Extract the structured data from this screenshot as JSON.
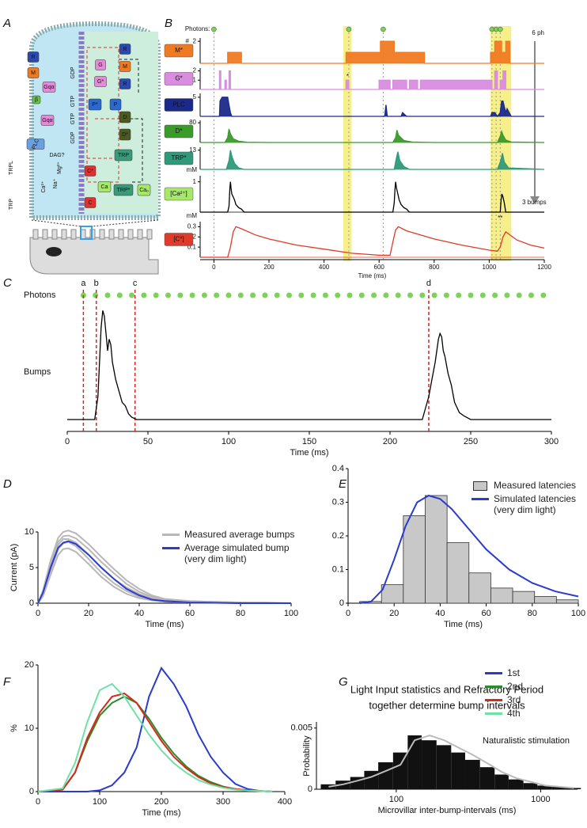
{
  "diagram": {
    "panel": "A",
    "nodes": [
      "R",
      "M",
      "Gqα",
      "β",
      "Gqα",
      "PLC",
      "DAG?",
      "Mg²⁺",
      "Na⁺",
      "Ca²⁺",
      "TRPL",
      "TRP",
      "GDP",
      "GTP",
      "GTP",
      "GDP",
      "G",
      "G*",
      "R",
      "M",
      "R",
      "P*",
      "P",
      "D",
      "D*",
      "TRP",
      "TRP*",
      "C*",
      "C",
      "Ca",
      "Caₒ"
    ]
  },
  "chart_data": [
    {
      "type": "events",
      "panel": "B",
      "label": "Photons:",
      "annotation": "6 ph",
      "color": "#7dd35a",
      "x": [
        0,
        490,
        615,
        1010,
        1025,
        1040
      ],
      "xlim": [
        -50,
        1200
      ],
      "highlights": [
        [
          470,
          500
        ],
        [
          1005,
          1080
        ]
      ],
      "highlight_color": "#f7f08a"
    },
    {
      "type": "line",
      "label": "M*",
      "ylabel": "#",
      "color": "#f07a22",
      "fill": true,
      "xlim": [
        -50,
        1200
      ],
      "ylim": [
        0,
        2.3
      ],
      "yticks": [
        2
      ],
      "x": [
        -50,
        50,
        50,
        100,
        100,
        480,
        480,
        605,
        605,
        655,
        655,
        765,
        765,
        1005,
        1005,
        1020,
        1020,
        1045,
        1045,
        1060,
        1060,
        1075,
        1075,
        1200
      ],
      "values": [
        0,
        0,
        1,
        1,
        0,
        0,
        1,
        1,
        2,
        2,
        1,
        1,
        0,
        0,
        1,
        1,
        2,
        2,
        1,
        1,
        2,
        2,
        0,
        0
      ]
    },
    {
      "type": "line",
      "label": "G*",
      "annotation": "*",
      "color": "#d98ce0",
      "fill": true,
      "xlim": [
        -50,
        1200
      ],
      "ylim": [
        0,
        2.3
      ],
      "yticks": [
        1,
        2
      ],
      "x": [
        -50,
        20,
        20,
        25,
        25,
        40,
        40,
        45,
        45,
        55,
        55,
        60,
        60,
        480,
        480,
        490,
        490,
        600,
        600,
        640,
        640,
        650,
        650,
        700,
        700,
        710,
        710,
        740,
        740,
        750,
        750,
        1010,
        1010,
        1020,
        1020,
        1030,
        1030,
        1040,
        1040,
        1050,
        1050,
        1060,
        1060,
        1200
      ],
      "values": [
        0,
        0,
        2,
        2,
        0,
        0,
        1,
        1,
        0,
        0,
        2,
        2,
        0,
        0,
        1,
        1,
        0,
        0,
        1,
        1,
        0,
        0,
        1,
        1,
        0,
        0,
        1,
        1,
        0,
        0,
        1,
        1,
        0,
        0,
        2,
        2,
        0,
        0,
        1,
        1,
        2,
        2,
        0,
        0
      ]
    },
    {
      "type": "line",
      "label": "PLC",
      "color": "#1b2a8a",
      "fill": true,
      "xlim": [
        -50,
        1200
      ],
      "ylim": [
        0,
        6
      ],
      "yticks": [
        5
      ],
      "x": [
        -50,
        20,
        22,
        30,
        50,
        55,
        60,
        65,
        120,
        480,
        620,
        625,
        630,
        680,
        685,
        700,
        705,
        1005,
        1010,
        1020,
        1030,
        1040,
        1045,
        1050,
        1060,
        1065,
        1080,
        1200
      ],
      "values": [
        0,
        0,
        4,
        5,
        5,
        3,
        1,
        0,
        0,
        0,
        0,
        3,
        0,
        0,
        1,
        0,
        0,
        0,
        1,
        1,
        0,
        1,
        4,
        4,
        1,
        2,
        0,
        0
      ]
    },
    {
      "type": "line",
      "label": "D*",
      "color": "#3a9a2a",
      "fill": true,
      "xlim": [
        -50,
        1200
      ],
      "ylim": [
        0,
        90
      ],
      "yticks": [
        80
      ],
      "x": [
        -50,
        40,
        50,
        55,
        60,
        70,
        90,
        120,
        200,
        600,
        650,
        660,
        665,
        670,
        690,
        720,
        800,
        1030,
        1040,
        1045,
        1050,
        1060,
        1080,
        1200
      ],
      "values": [
        0,
        0,
        20,
        55,
        35,
        15,
        5,
        1,
        0,
        0,
        0,
        20,
        50,
        30,
        8,
        2,
        0,
        0,
        25,
        45,
        30,
        10,
        2,
        0
      ]
    },
    {
      "type": "line",
      "label": "TRP*",
      "color": "#2f9a7a",
      "fill": true,
      "xlim": [
        -50,
        1200
      ],
      "ylim": [
        0,
        15
      ],
      "yticks": [
        13
      ],
      "x": [
        -50,
        45,
        55,
        60,
        65,
        75,
        90,
        110,
        600,
        655,
        662,
        668,
        675,
        690,
        710,
        1030,
        1042,
        1048,
        1055,
        1070,
        1200
      ],
      "values": [
        0,
        0,
        6,
        13,
        9,
        4,
        1,
        0,
        0,
        0,
        7,
        12,
        6,
        2,
        0,
        0,
        6,
        11,
        5,
        1,
        0
      ]
    },
    {
      "type": "line",
      "label": "[Ca²⁺]",
      "ylabel": "mM",
      "annotations": [
        "**",
        "3 bumps"
      ],
      "color": "#000000",
      "fill": false,
      "xlim": [
        -50,
        1200
      ],
      "ylim": [
        0,
        1.2
      ],
      "yticks": [
        1
      ],
      "x": [
        -50,
        50,
        55,
        58,
        60,
        62,
        65,
        70,
        75,
        80,
        90,
        100,
        110,
        600,
        650,
        655,
        658,
        660,
        663,
        668,
        673,
        680,
        690,
        700,
        710,
        1030,
        1040,
        1043,
        1046,
        1050,
        1055,
        1060,
        1200
      ],
      "values": [
        0,
        0,
        0.2,
        0.8,
        1,
        0.8,
        0.6,
        0.5,
        0.4,
        0.25,
        0.15,
        0.1,
        0,
        0,
        0,
        0.3,
        0.8,
        1,
        0.8,
        0.6,
        0.4,
        0.25,
        0.15,
        0.1,
        0,
        0,
        0,
        0.4,
        0.6,
        0.5,
        0.3,
        0,
        0
      ]
    },
    {
      "type": "line",
      "label": "[C*]",
      "ylabel": "mM",
      "xlabel": "Time (ms)",
      "color": "#e03a2a",
      "fill": false,
      "xlim": [
        -50,
        1200
      ],
      "ylim": [
        0,
        0.35
      ],
      "yticks": [
        0.1,
        0.2,
        0.3
      ],
      "xticks": [
        0,
        200,
        400,
        600,
        800,
        1000,
        1200
      ],
      "x": [
        -50,
        50,
        60,
        70,
        80,
        100,
        150,
        200,
        300,
        400,
        500,
        600,
        640,
        650,
        660,
        670,
        700,
        800,
        900,
        1000,
        1030,
        1040,
        1050,
        1060,
        1100,
        1150,
        1200
      ],
      "values": [
        0,
        0,
        0.1,
        0.25,
        0.3,
        0.28,
        0.22,
        0.18,
        0.12,
        0.08,
        0.04,
        0.02,
        0.02,
        0.15,
        0.27,
        0.3,
        0.26,
        0.18,
        0.12,
        0.07,
        0.06,
        0.1,
        0.2,
        0.25,
        0.17,
        0.12,
        0.09
      ]
    },
    {
      "type": "line",
      "panel": "C",
      "label": "Bumps",
      "xlabel": "Time (ms)",
      "color": "#000000",
      "fill": false,
      "xlim": [
        0,
        300
      ],
      "ylim": [
        0,
        1
      ],
      "xticks": [
        0,
        50,
        100,
        150,
        200,
        250,
        300
      ],
      "photons": {
        "label": "Photons",
        "color": "#7dd35a",
        "x": [
          10,
          17.5,
          25,
          32.5,
          40,
          47.5,
          55,
          62.5,
          70,
          77.5,
          85,
          92.5,
          100,
          107.5,
          115,
          122.5,
          130,
          137.5,
          145,
          152.5,
          160,
          167.5,
          175,
          182.5,
          190,
          197.5,
          205,
          212.5,
          220,
          227.5,
          235,
          242.5,
          250,
          257.5,
          265,
          272.5,
          280,
          287.5,
          295
        ]
      },
      "markers": [
        {
          "value": 10,
          "label": "a"
        },
        {
          "value": 18,
          "label": "b"
        },
        {
          "value": 42,
          "label": "c"
        },
        {
          "value": 224,
          "label": "d"
        }
      ],
      "marker_color": "#e02020",
      "x": [
        0,
        17,
        19,
        20,
        21,
        22,
        23,
        24,
        25,
        26,
        27,
        28,
        30,
        32,
        34,
        36,
        38,
        40,
        43,
        220,
        222,
        224,
        226,
        228,
        230,
        231,
        232,
        233,
        234,
        236,
        238,
        240,
        243,
        246,
        250,
        300
      ],
      "values": [
        0,
        0,
        0.2,
        0.5,
        0.8,
        0.95,
        0.9,
        0.75,
        0.6,
        0.7,
        0.65,
        0.5,
        0.35,
        0.25,
        0.15,
        0.12,
        0.05,
        0.02,
        0,
        0,
        0.1,
        0.2,
        0.35,
        0.5,
        0.7,
        0.75,
        0.72,
        0.6,
        0.55,
        0.4,
        0.3,
        0.15,
        0.06,
        0.03,
        0,
        0
      ]
    },
    {
      "type": "line",
      "panel": "D",
      "xlabel": "Time (ms)",
      "ylabel": "Current (pA)",
      "xlim": [
        0,
        100
      ],
      "ylim": [
        0,
        10
      ],
      "xticks": [
        0,
        20,
        40,
        60,
        80,
        100
      ],
      "yticks": [
        0,
        5,
        10
      ],
      "x": [
        0,
        2,
        5,
        8,
        10,
        12,
        15,
        20,
        25,
        30,
        35,
        40,
        45,
        50,
        60,
        70,
        80,
        90,
        100
      ],
      "series": [
        {
          "name": "Measured average bumps",
          "color": "#b8b8b8",
          "values": [
            0,
            1.8,
            6,
            9.2,
            10,
            10.2,
            9.8,
            8.3,
            6.5,
            4.8,
            3.2,
            2,
            1.1,
            0.6,
            0.3,
            0.2,
            0.1,
            0.1,
            0
          ]
        },
        {
          "color": "#b8b8b8",
          "values": [
            0,
            1.6,
            5.5,
            8.6,
            9.4,
            9.5,
            9.1,
            7.6,
            5.8,
            4.2,
            2.7,
            1.6,
            0.9,
            0.5,
            0.2,
            0.2,
            0.1,
            0,
            0
          ]
        },
        {
          "color": "#b8b8b8",
          "values": [
            0,
            1.4,
            5,
            8.2,
            9,
            9,
            8.5,
            6.8,
            5,
            3.4,
            2.2,
            1.3,
            0.7,
            0.4,
            0.2,
            0.1,
            0.1,
            0,
            0
          ]
        },
        {
          "color": "#b8b8b8",
          "values": [
            0,
            1.2,
            4.6,
            7.6,
            8.4,
            8.6,
            8,
            6.2,
            4.3,
            2.8,
            1.7,
            0.9,
            0.5,
            0.3,
            0.1,
            0.1,
            0,
            0,
            0
          ]
        },
        {
          "color": "#b8b8b8",
          "values": [
            0,
            1,
            4,
            6.8,
            7.6,
            7.7,
            7.2,
            5.5,
            3.7,
            2.3,
            1.3,
            0.7,
            0.4,
            0.2,
            0.1,
            0.1,
            0,
            0,
            0
          ]
        },
        {
          "name": "Average simulated bump (very dim light)",
          "color": "#2a3bd0",
          "values": [
            0,
            1.5,
            5,
            7.8,
            8.5,
            8.7,
            8.3,
            6.8,
            5,
            3.4,
            2,
            1.1,
            0.5,
            0.3,
            0.1,
            0.05,
            0,
            0,
            0
          ]
        }
      ]
    },
    {
      "type": "histogram",
      "panel": "E",
      "name": "Measured latencies",
      "xlabel": "Time (ms)",
      "color": "#c8c8c8",
      "edge_color": "#333333",
      "xlim": [
        0,
        100
      ],
      "ylim": [
        0,
        0.4
      ],
      "xticks": [
        0,
        20,
        40,
        60,
        80,
        100
      ],
      "yticks": [
        0,
        0.1,
        0.2,
        0.3,
        0.4
      ],
      "bins": [
        5,
        14.5,
        24,
        33.5,
        43,
        52.5,
        62,
        71.5,
        81,
        90.5,
        100
      ],
      "values": [
        0.005,
        0.055,
        0.26,
        0.32,
        0.18,
        0.09,
        0.045,
        0.035,
        0.02,
        0.01
      ],
      "series": [
        {
          "name": "Simulated latencies (very dim light)",
          "color": "#2a3bd0",
          "x": [
            5,
            10,
            15,
            20,
            25,
            30,
            35,
            40,
            45,
            50,
            60,
            70,
            80,
            90,
            100
          ],
          "values": [
            0,
            0.005,
            0.04,
            0.13,
            0.23,
            0.3,
            0.32,
            0.31,
            0.28,
            0.24,
            0.16,
            0.1,
            0.06,
            0.035,
            0.02
          ]
        }
      ]
    },
    {
      "type": "line",
      "panel": "F",
      "xlabel": "Time (ms)",
      "ylabel": "%",
      "xlim": [
        0,
        400
      ],
      "ylim": [
        0,
        20
      ],
      "xticks": [
        0,
        100,
        200,
        300,
        400
      ],
      "yticks": [
        0,
        10,
        20
      ],
      "x": [
        0,
        40,
        60,
        80,
        100,
        120,
        140,
        160,
        180,
        200,
        220,
        240,
        260,
        280,
        300,
        320,
        340,
        360,
        380
      ],
      "series": [
        {
          "name": "1st",
          "color": "#2a3bd0",
          "values": [
            0,
            0,
            0,
            0,
            0.2,
            1,
            3,
            7,
            15,
            19.5,
            17,
            13.5,
            9,
            5.5,
            3,
            1.2,
            0.4,
            0.1,
            0
          ]
        },
        {
          "name": "2nd",
          "color": "#2e8a2e",
          "values": [
            0,
            0.3,
            3,
            8,
            12,
            14,
            15,
            14,
            11.5,
            8.5,
            6,
            4,
            2.5,
            1.5,
            0.8,
            0.4,
            0.2,
            0.1,
            0
          ]
        },
        {
          "name": "3rd",
          "color": "#d42a1a",
          "values": [
            0,
            0.3,
            3,
            8.5,
            12.5,
            15,
            15.5,
            14,
            11,
            8,
            5.5,
            3.7,
            2.3,
            1.3,
            0.7,
            0.4,
            0.2,
            0.1,
            0
          ]
        },
        {
          "name": "4th",
          "color": "#6fe0a8",
          "values": [
            0,
            0.5,
            4.5,
            11,
            16,
            17,
            15,
            12,
            9,
            6.5,
            4.5,
            3,
            1.8,
            1.1,
            0.6,
            0.3,
            0.15,
            0.1,
            0
          ]
        }
      ]
    },
    {
      "type": "histogram",
      "panel": "G",
      "title": [
        "Light Input statistics and Refractory Period",
        "together determine bump intervals"
      ],
      "annotation": "Naturalistic stimulation",
      "xlabel": "Microvillar inter-bump-intervals (ms)",
      "ylabel": "Probability",
      "color": "#111111",
      "log_x": true,
      "xlim": [
        28,
        1800
      ],
      "ylim": [
        0,
        0.0055
      ],
      "xticks": [
        100,
        1000
      ],
      "yticks": [
        0,
        0.005
      ],
      "bins": [
        30,
        38,
        48,
        60,
        75,
        95,
        120,
        150,
        190,
        240,
        300,
        380,
        480,
        600,
        760,
        950,
        1200,
        1500,
        1900
      ],
      "values": [
        0.0004,
        0.0007,
        0.001,
        0.0015,
        0.0022,
        0.003,
        0.0044,
        0.004,
        0.0036,
        0.003,
        0.0024,
        0.0018,
        0.0012,
        0.0008,
        0.0005,
        0.0003,
        0.0002,
        0.0001
      ],
      "series": [
        {
          "color": "#bbbbbb",
          "x": [
            34,
            43,
            54,
            67,
            85,
            107,
            134,
            170,
            215,
            270,
            340,
            430,
            540,
            680,
            855,
            1075,
            1350,
            1700
          ],
          "values": [
            0.0002,
            0.0004,
            0.0007,
            0.001,
            0.0015,
            0.002,
            0.004,
            0.0044,
            0.004,
            0.0034,
            0.0028,
            0.0021,
            0.0014,
            0.0009,
            0.0006,
            0.0003,
            0.0002,
            0.0001
          ]
        }
      ]
    }
  ]
}
